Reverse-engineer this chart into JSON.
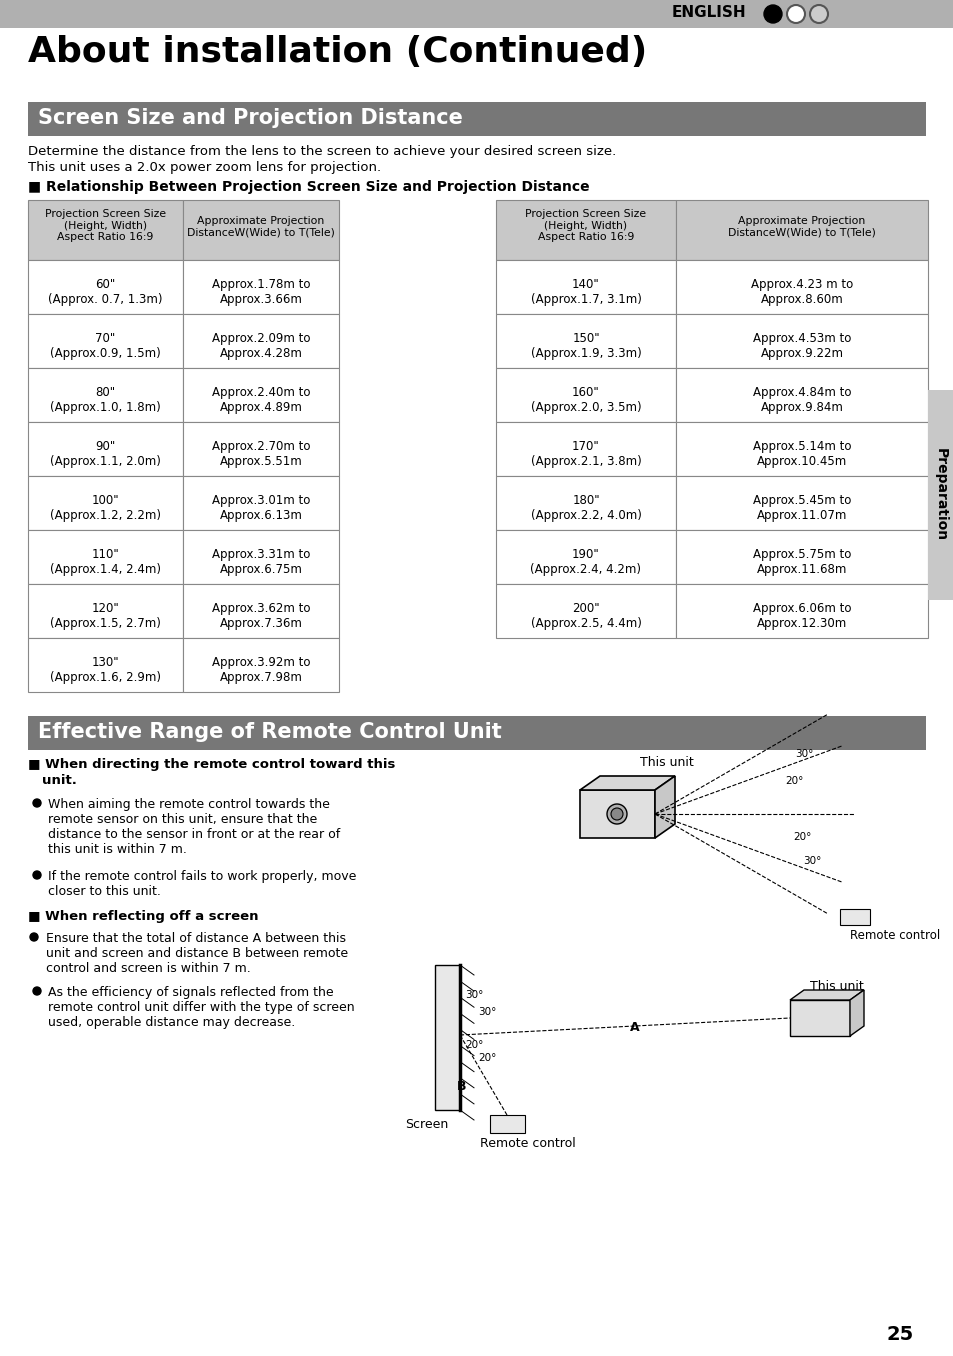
{
  "title": "About installation (Continued)",
  "section1_title": "Screen Size and Projection Distance",
  "section2_title": "Effective Range of Remote Control Unit",
  "intro_line1": "Determine the distance from the lens to the screen to achieve your desired screen size.",
  "intro_line2": "This unit uses a 2.0x power zoom lens for projection.",
  "relationship_title": "■ Relationship Between Projection Screen Size and Projection Distance",
  "left_table_rows": [
    [
      "60\"\n(Approx. 0.7, 1.3m)",
      "Approx.1.78m to\nApprox.3.66m"
    ],
    [
      "70\"\n(Approx.0.9, 1.5m)",
      "Approx.2.09m to\nApprox.4.28m"
    ],
    [
      "80\"\n(Approx.1.0, 1.8m)",
      "Approx.2.40m to\nApprox.4.89m"
    ],
    [
      "90\"\n(Approx.1.1, 2.0m)",
      "Approx.2.70m to\nApprox.5.51m"
    ],
    [
      "100\"\n(Approx.1.2, 2.2m)",
      "Approx.3.01m to\nApprox.6.13m"
    ],
    [
      "110\"\n(Approx.1.4, 2.4m)",
      "Approx.3.31m to\nApprox.6.75m"
    ],
    [
      "120\"\n(Approx.1.5, 2.7m)",
      "Approx.3.62m to\nApprox.7.36m"
    ],
    [
      "130\"\n(Approx.1.6, 2.9m)",
      "Approx.3.92m to\nApprox.7.98m"
    ]
  ],
  "right_table_rows": [
    [
      "140\"\n(Approx.1.7, 3.1m)",
      "Approx.4.23 m to\nApprox.8.60m"
    ],
    [
      "150\"\n(Approx.1.9, 3.3m)",
      "Approx.4.53m to\nApprox.9.22m"
    ],
    [
      "160\"\n(Approx.2.0, 3.5m)",
      "Approx.4.84m to\nApprox.9.84m"
    ],
    [
      "170\"\n(Approx.2.1, 3.8m)",
      "Approx.5.14m to\nApprox.10.45m"
    ],
    [
      "180\"\n(Approx.2.2, 4.0m)",
      "Approx.5.45m to\nApprox.11.07m"
    ],
    [
      "190\"\n(Approx.2.4, 4.2m)",
      "Approx.5.75m to\nApprox.11.68m"
    ],
    [
      "200\"\n(Approx.2.5, 4.4m)",
      "Approx.6.06m to\nApprox.12.30m"
    ]
  ],
  "page_number": "25",
  "preparation_label": "Preparation",
  "english_label": "ENGLISH"
}
